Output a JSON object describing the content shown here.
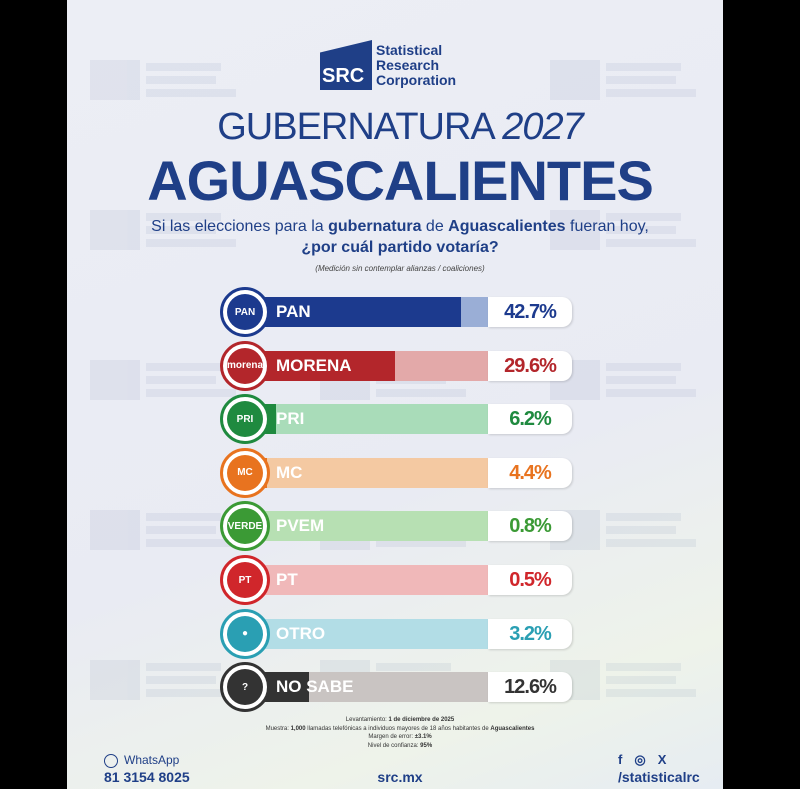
{
  "brand": {
    "logo_mark": "SRC",
    "line1": "Statistical",
    "line2": "Research",
    "line3": "Corporation"
  },
  "title": {
    "line1_a": "GUBERNATURA",
    "line1_b": "2027",
    "line2": "AGUASCALIENTES"
  },
  "question": {
    "p1": "Si las elecciones para la ",
    "b1": "gubernatura",
    "p2": " de ",
    "b2": "Aguascalientes",
    "p3": " fueran hoy,",
    "line2": "¿por cuál partido votaría?"
  },
  "note": "(Medición sin contemplar alianzas / coaliciones)",
  "chart_data": {
    "type": "bar",
    "orientation": "horizontal",
    "categories": [
      "PAN",
      "MORENA",
      "PRI",
      "MC",
      "PVEM",
      "PT",
      "OTRO",
      "NO SABE"
    ],
    "values": [
      42.7,
      29.6,
      6.2,
      4.4,
      0.8,
      0.5,
      3.2,
      12.6
    ],
    "value_labels": [
      "42.7%",
      "29.6%",
      "6.2%",
      "4.4%",
      "0.8%",
      "0.5%",
      "3.2%",
      "12.6%"
    ],
    "icons": [
      "PAN",
      "morena",
      "PRI",
      "MC",
      "VERDE",
      "PT",
      "person-icon",
      "question-icon"
    ],
    "colors": [
      "#1c3a8e",
      "#b3262b",
      "#1f8a3f",
      "#e8731f",
      "#3b9a35",
      "#d0262b",
      "#2a9fb3",
      "#333333"
    ],
    "light_colors": [
      "#9aaed6",
      "#e3a9a9",
      "#a9dcb9",
      "#f4c9a2",
      "#b7e0b3",
      "#f0b8b9",
      "#b2dde6",
      "#c9c4c2"
    ]
  },
  "footer": {
    "l1_a": "Levantamiento: ",
    "l1_b": "1 de diciembre de 2025",
    "l2_a": "Muestra: ",
    "l2_b": "1,000",
    "l2_c": " llamadas telefónicas a individuos mayores de 18 años habitantes de ",
    "l2_d": "Aguascalientes",
    "l3_a": "Margen de error: ",
    "l3_b": "±3.1%",
    "l4_a": "Nivel de confianza: ",
    "l4_b": "95%",
    "whatsapp_label": "WhatsApp",
    "phone": "81 3154 8025",
    "site": "src.mx",
    "social": "/statisticalrc"
  }
}
